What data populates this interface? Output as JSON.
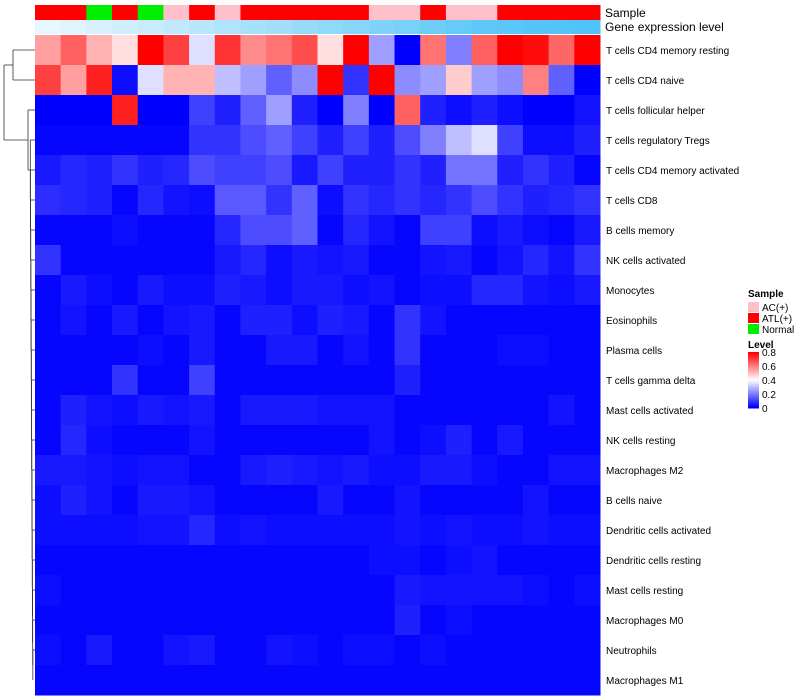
{
  "chart_data": {
    "type": "heatmap",
    "title": "",
    "annotation_labels": [
      "Sample",
      "Gene expression level"
    ],
    "sample_groups": [
      "ATL(+)",
      "ATL(+)",
      "Normal",
      "ATL(+)",
      "Normal",
      "AC(+)",
      "ATL(+)",
      "AC(+)",
      "ATL(+)",
      "ATL(+)",
      "ATL(+)",
      "ATL(+)",
      "ATL(+)",
      "AC(+)",
      "AC(+)",
      "ATL(+)",
      "AC(+)",
      "AC(+)",
      "ATL(+)",
      "ATL(+)",
      "ATL(+)",
      "ATL(+)"
    ],
    "expression_levels": [
      0.05,
      0.1,
      0.15,
      0.2,
      0.25,
      0.3,
      0.35,
      0.4,
      0.45,
      0.5,
      0.55,
      0.6,
      0.65,
      0.7,
      0.75,
      0.8,
      0.85,
      0.9,
      0.93,
      0.96,
      0.98,
      1.0
    ],
    "rows": [
      "T cells CD4 memory resting",
      "T cells CD4 naive",
      "T cells follicular helper",
      "T cells regulatory  Tregs",
      "T cells CD4 memory activated",
      "T cells CD8",
      "B cells memory",
      "NK cells activated",
      "Monocytes",
      "Eosinophils",
      "Plasma cells",
      "T cells gamma delta",
      "Mast cells activated",
      "NK cells resting",
      "Macrophages M2",
      "B cells naive",
      "Dendritic cells activated",
      "Dendritic cells resting",
      "Mast cells resting",
      "Macrophages M0",
      "Neutrophils",
      "Macrophages M1"
    ],
    "values": [
      [
        0.55,
        0.65,
        0.52,
        0.45,
        0.8,
        0.7,
        0.35,
        0.72,
        0.58,
        0.62,
        0.68,
        0.45,
        0.8,
        0.25,
        0.0,
        0.62,
        0.2,
        0.65,
        0.8,
        0.78,
        0.64,
        0.8
      ],
      [
        0.7,
        0.55,
        0.75,
        0.02,
        0.35,
        0.52,
        0.52,
        0.3,
        0.25,
        0.15,
        0.22,
        0.8,
        0.08,
        0.8,
        0.22,
        0.25,
        0.48,
        0.25,
        0.22,
        0.6,
        0.15,
        0.0
      ],
      [
        0.0,
        0.0,
        0.0,
        0.75,
        0.0,
        0.0,
        0.1,
        0.05,
        0.15,
        0.25,
        0.05,
        0.0,
        0.2,
        0.0,
        0.65,
        0.05,
        0.02,
        0.05,
        0.02,
        0.0,
        0.0,
        0.03
      ],
      [
        0.01,
        0.01,
        0.01,
        0.01,
        0.01,
        0.01,
        0.08,
        0.08,
        0.12,
        0.15,
        0.1,
        0.05,
        0.1,
        0.05,
        0.12,
        0.2,
        0.3,
        0.35,
        0.1,
        0.02,
        0.02,
        0.05
      ],
      [
        0.04,
        0.06,
        0.05,
        0.08,
        0.05,
        0.06,
        0.12,
        0.1,
        0.1,
        0.12,
        0.04,
        0.1,
        0.05,
        0.05,
        0.08,
        0.05,
        0.18,
        0.18,
        0.05,
        0.08,
        0.05,
        0.01
      ],
      [
        0.07,
        0.06,
        0.05,
        0.01,
        0.06,
        0.03,
        0.02,
        0.14,
        0.14,
        0.08,
        0.15,
        0.02,
        0.08,
        0.06,
        0.08,
        0.06,
        0.08,
        0.12,
        0.08,
        0.05,
        0.06,
        0.08
      ],
      [
        0.01,
        0.01,
        0.01,
        0.02,
        0.01,
        0.01,
        0.01,
        0.06,
        0.12,
        0.12,
        0.15,
        0.01,
        0.06,
        0.03,
        0.01,
        0.1,
        0.1,
        0.02,
        0.04,
        0.02,
        0.01,
        0.04
      ],
      [
        0.08,
        0.01,
        0.01,
        0.01,
        0.01,
        0.01,
        0.01,
        0.04,
        0.06,
        0.02,
        0.04,
        0.03,
        0.04,
        0.01,
        0.01,
        0.03,
        0.04,
        0.01,
        0.03,
        0.06,
        0.03,
        0.08
      ],
      [
        0.01,
        0.04,
        0.02,
        0.01,
        0.04,
        0.02,
        0.02,
        0.05,
        0.04,
        0.02,
        0.04,
        0.04,
        0.02,
        0.03,
        0.01,
        0.02,
        0.02,
        0.06,
        0.06,
        0.03,
        0.02,
        0.04
      ],
      [
        0.01,
        0.03,
        0.01,
        0.04,
        0.01,
        0.03,
        0.04,
        0.01,
        0.05,
        0.05,
        0.02,
        0.05,
        0.04,
        0.01,
        0.08,
        0.03,
        0.01,
        0.01,
        0.01,
        0.01,
        0.01,
        0.01
      ],
      [
        0.01,
        0.01,
        0.01,
        0.01,
        0.02,
        0.01,
        0.04,
        0.01,
        0.01,
        0.04,
        0.04,
        0.01,
        0.03,
        0.01,
        0.08,
        0.01,
        0.01,
        0.01,
        0.02,
        0.02,
        0.01,
        0.01
      ],
      [
        0.01,
        0.01,
        0.01,
        0.08,
        0.01,
        0.01,
        0.1,
        0.01,
        0.01,
        0.01,
        0.01,
        0.01,
        0.01,
        0.01,
        0.05,
        0.01,
        0.01,
        0.01,
        0.01,
        0.01,
        0.01,
        0.01
      ],
      [
        0.01,
        0.05,
        0.03,
        0.02,
        0.04,
        0.03,
        0.04,
        0.01,
        0.04,
        0.04,
        0.04,
        0.03,
        0.03,
        0.03,
        0.01,
        0.01,
        0.01,
        0.01,
        0.01,
        0.01,
        0.03,
        0.01
      ],
      [
        0.01,
        0.06,
        0.02,
        0.01,
        0.01,
        0.01,
        0.03,
        0.01,
        0.01,
        0.01,
        0.01,
        0.01,
        0.01,
        0.03,
        0.01,
        0.02,
        0.05,
        0.01,
        0.04,
        0.01,
        0.01,
        0.01
      ],
      [
        0.04,
        0.04,
        0.03,
        0.02,
        0.03,
        0.03,
        0.01,
        0.01,
        0.04,
        0.05,
        0.04,
        0.03,
        0.04,
        0.02,
        0.02,
        0.04,
        0.04,
        0.02,
        0.01,
        0.01,
        0.03,
        0.03
      ],
      [
        0.02,
        0.05,
        0.03,
        0.01,
        0.04,
        0.04,
        0.03,
        0.01,
        0.01,
        0.01,
        0.01,
        0.04,
        0.01,
        0.01,
        0.03,
        0.01,
        0.01,
        0.01,
        0.01,
        0.03,
        0.01,
        0.01
      ],
      [
        0.02,
        0.02,
        0.02,
        0.02,
        0.03,
        0.03,
        0.06,
        0.02,
        0.03,
        0.02,
        0.02,
        0.02,
        0.02,
        0.02,
        0.03,
        0.02,
        0.03,
        0.02,
        0.02,
        0.03,
        0.02,
        0.02
      ],
      [
        0.01,
        0.01,
        0.01,
        0.01,
        0.01,
        0.01,
        0.01,
        0.01,
        0.01,
        0.01,
        0.01,
        0.01,
        0.01,
        0.02,
        0.02,
        0.01,
        0.02,
        0.03,
        0.01,
        0.01,
        0.01,
        0.01
      ],
      [
        0.02,
        0.01,
        0.01,
        0.01,
        0.01,
        0.01,
        0.01,
        0.01,
        0.01,
        0.01,
        0.01,
        0.01,
        0.01,
        0.01,
        0.04,
        0.03,
        0.03,
        0.03,
        0.03,
        0.02,
        0.01,
        0.02
      ],
      [
        0.01,
        0.01,
        0.01,
        0.01,
        0.01,
        0.01,
        0.01,
        0.01,
        0.01,
        0.01,
        0.01,
        0.01,
        0.01,
        0.01,
        0.05,
        0.01,
        0.02,
        0.01,
        0.01,
        0.01,
        0.01,
        0.01
      ],
      [
        0.02,
        0.01,
        0.04,
        0.01,
        0.01,
        0.03,
        0.04,
        0.01,
        0.01,
        0.03,
        0.02,
        0.01,
        0.02,
        0.02,
        0.01,
        0.02,
        0.01,
        0.01,
        0.01,
        0.01,
        0.01,
        0.01
      ],
      [
        0.01,
        0.01,
        0.01,
        0.01,
        0.01,
        0.01,
        0.01,
        0.01,
        0.01,
        0.01,
        0.01,
        0.01,
        0.01,
        0.01,
        0.01,
        0.01,
        0.01,
        0.01,
        0.01,
        0.01,
        0.01,
        0.01
      ]
    ],
    "legend": {
      "sample_title": "Sample",
      "sample_items": [
        {
          "label": "AC(+)",
          "color": "#FFC0CB"
        },
        {
          "label": "ATL(+)",
          "color": "#FF0000"
        },
        {
          "label": "Normal",
          "color": "#00EE00"
        }
      ],
      "level_title": "Level",
      "level_range": [
        0,
        0.8
      ],
      "level_ticks": [
        "0.8",
        "0.6",
        "0.4",
        "0.2",
        "0"
      ],
      "level_tick_values": [
        0.8,
        0.6,
        0.4,
        0.2,
        0
      ]
    },
    "colors": {
      "low": "#0000FF",
      "mid": "#FFFFFF",
      "high": "#FF0000",
      "expression_low": "#F0F9FF",
      "expression_high": "#4FC3F7"
    }
  }
}
